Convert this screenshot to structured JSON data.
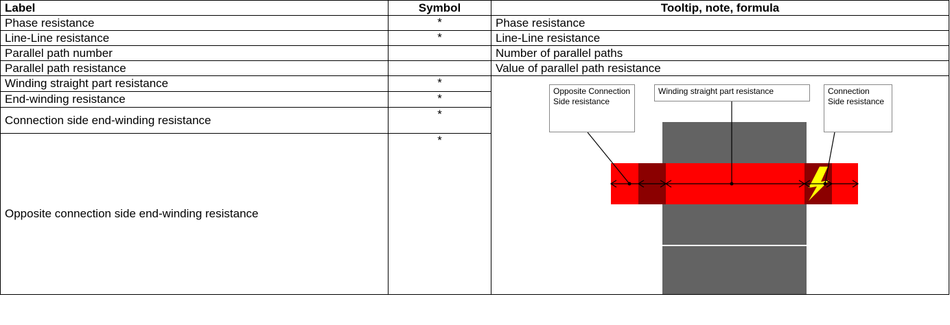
{
  "table": {
    "columns": [
      "Label",
      "Symbol",
      "Tooltip, note, formula"
    ],
    "rows": [
      {
        "label": "Phase resistance",
        "symbol": "*",
        "note": "Phase resistance"
      },
      {
        "label": "Line-Line resistance",
        "symbol": "*",
        "note": "Line-Line resistance"
      },
      {
        "label": "Parallel path number",
        "note": "Number of parallel paths"
      },
      {
        "label": "Parallel path resistance",
        "note": "Value of parallel path resistance"
      },
      {
        "label": "Winding straight part resistance",
        "symbol": "*"
      },
      {
        "label": "End-winding resistance",
        "symbol": "*"
      },
      {
        "label": "Connection side end-winding resistance",
        "symbol": "*"
      },
      {
        "label": "Opposite connection side end-winding resistance",
        "symbol": "*"
      }
    ]
  },
  "diagram": {
    "labels": [
      "Opposite Connection Side resistance",
      "Winding straight part resistance",
      "Connection Side resistance"
    ]
  }
}
